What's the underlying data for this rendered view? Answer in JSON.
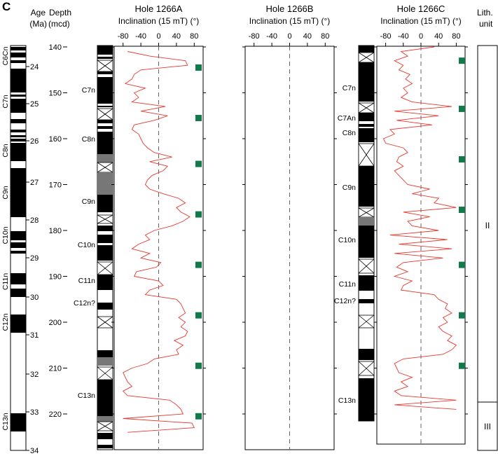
{
  "panel_letter": "C",
  "age_axis": {
    "title_line1": "Age",
    "title_line2": "(Ma)",
    "ticks": [
      24,
      25,
      26,
      27,
      28,
      29,
      30,
      31,
      32,
      33,
      34
    ],
    "chron_labels": [
      "C6Cn",
      "C7n",
      "C8n",
      "C9n",
      "C10n",
      "C11n",
      "C12n",
      "C13n"
    ]
  },
  "depth_axis": {
    "title_line1": "Depth",
    "title_line2": "(mcd)",
    "ticks": [
      140,
      150,
      160,
      170,
      180,
      190,
      200,
      210,
      220
    ]
  },
  "lith_unit": {
    "title_line1": "Lith.",
    "title_line2": "unit",
    "units": [
      "II",
      "III"
    ]
  },
  "chart_data": [
    {
      "type": "line",
      "title": "Hole 1266A",
      "xlabel": "Inclination (15 mT) (°)",
      "xlim": [
        -100,
        100
      ],
      "xticks": [
        -80,
        -40,
        0,
        40,
        80
      ],
      "ylim": [
        140,
        224.5
      ],
      "y_inverted": true,
      "series_color": "#e8392f",
      "chron_labels": [
        "C7n",
        "C8n",
        "C9n",
        "C10n",
        "C11n",
        "C12n?",
        "C13n"
      ],
      "depth": [
        141,
        142,
        143,
        144,
        145,
        146,
        147,
        148,
        149,
        150,
        151,
        152,
        153,
        154,
        155,
        156,
        157,
        158,
        159,
        160,
        161,
        162,
        163,
        164,
        165,
        166,
        167,
        168,
        169,
        170,
        171,
        172,
        173,
        174,
        175,
        176,
        177,
        178,
        179,
        180,
        181,
        182,
        183,
        184,
        185,
        186,
        187,
        188,
        189,
        190,
        191,
        192,
        193,
        194,
        195,
        196,
        197,
        198,
        199,
        200,
        201,
        202,
        203,
        204,
        205,
        206,
        207,
        208,
        209,
        210,
        211,
        212,
        213,
        214,
        215,
        216,
        217,
        218,
        219,
        220,
        221,
        222,
        223,
        224
      ],
      "inclination": [
        -70,
        -20,
        60,
        65,
        -40,
        -55,
        -60,
        -75,
        -30,
        -55,
        -45,
        -60,
        15,
        -40,
        20,
        -10,
        -55,
        -60,
        -45,
        -40,
        -35,
        -25,
        -10,
        30,
        -20,
        20,
        10,
        -15,
        -25,
        -30,
        -20,
        10,
        45,
        60,
        40,
        50,
        70,
        55,
        30,
        -10,
        -30,
        -20,
        -45,
        -60,
        -20,
        -40,
        5,
        -5,
        -50,
        -55,
        0,
        10,
        -20,
        -30,
        40,
        50,
        55,
        60,
        45,
        60,
        50,
        65,
        60,
        35,
        55,
        40,
        45,
        -10,
        -25,
        -60,
        -80,
        -75,
        -70,
        -60,
        -80,
        -70,
        25,
        40,
        50,
        55,
        -80,
        75,
        80,
        -70
      ],
      "squares_depth": [
        144.5,
        155.5,
        165.5,
        176.5,
        187.5,
        198.5,
        209.5,
        220.5
      ]
    },
    {
      "type": "line",
      "title": "Hole 1266B",
      "xlabel": "Inclination (15 mT) (°)",
      "xlim": [
        -100,
        100
      ],
      "xticks": [
        -80,
        -40,
        0,
        40,
        80
      ],
      "ylim": [
        140,
        224.5
      ],
      "y_inverted": true,
      "depth": [],
      "inclination": []
    },
    {
      "type": "line",
      "title": "Hole 1266C",
      "xlabel": "Inclination (15 mT) (°)",
      "xlim": [
        -100,
        100
      ],
      "xticks": [
        -80,
        -40,
        0,
        40,
        80
      ],
      "ylim": [
        140,
        224.5
      ],
      "y_inverted": true,
      "series_color": "#e8392f",
      "chron_labels": [
        "C7n",
        "C7An",
        "C8n",
        "C9n",
        "C10n",
        "C11n",
        "C12n?",
        "C13n"
      ],
      "depth": [
        140,
        141,
        142,
        143,
        144,
        145,
        146,
        147,
        148,
        149,
        150,
        151,
        152,
        153,
        154,
        155,
        156,
        157,
        158,
        159,
        160,
        161,
        162,
        163,
        164,
        165,
        166,
        167,
        168,
        169,
        170,
        171,
        172,
        173,
        174,
        175,
        176,
        177,
        178,
        179,
        180,
        181,
        182,
        183,
        184,
        185,
        186,
        187,
        188,
        189,
        190,
        191,
        192,
        193,
        194,
        195,
        196,
        197,
        198,
        199,
        200,
        201,
        202,
        203,
        204,
        205,
        206,
        207,
        208,
        209,
        210,
        211,
        212,
        213,
        214,
        215,
        216,
        217,
        218,
        219
      ],
      "inclination": [
        30,
        -45,
        -30,
        -60,
        -40,
        -50,
        -25,
        -35,
        -20,
        -40,
        -30,
        -45,
        -20,
        70,
        -60,
        40,
        -55,
        25,
        -70,
        -60,
        -85,
        -80,
        -40,
        -30,
        -50,
        -55,
        -40,
        -60,
        -50,
        -40,
        -30,
        20,
        -20,
        40,
        30,
        80,
        -40,
        20,
        -30,
        -20,
        40,
        -70,
        60,
        -50,
        70,
        -60,
        50,
        -40,
        -55,
        -30,
        -60,
        -20,
        -40,
        -45,
        30,
        40,
        60,
        55,
        70,
        50,
        60,
        40,
        50,
        70,
        60,
        80,
        70,
        50,
        -40,
        -60,
        -55,
        -50,
        -20,
        -45,
        -30,
        -60,
        -45,
        80,
        -60,
        80
      ],
      "squares_depth": [
        143,
        153.5,
        164.5,
        175.5,
        187.5,
        198.5,
        209.5
      ]
    }
  ]
}
